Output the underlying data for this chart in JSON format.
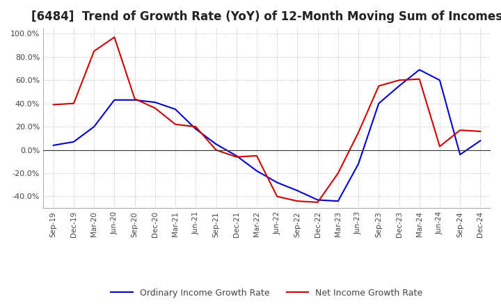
{
  "title": "[6484]  Trend of Growth Rate (YoY) of 12-Month Moving Sum of Incomes",
  "title_fontsize": 12,
  "ylim": [
    -0.5,
    1.05
  ],
  "yticks": [
    -0.4,
    -0.2,
    0.0,
    0.2,
    0.4,
    0.6,
    0.8,
    1.0
  ],
  "background_color": "#ffffff",
  "grid_color": "#aaaaaa",
  "legend_labels": [
    "Ordinary Income Growth Rate",
    "Net Income Growth Rate"
  ],
  "legend_colors": [
    "#0000cc",
    "#cc0000"
  ],
  "x_labels": [
    "Sep-19",
    "Dec-19",
    "Mar-20",
    "Jun-20",
    "Sep-20",
    "Dec-20",
    "Mar-21",
    "Jun-21",
    "Sep-21",
    "Dec-21",
    "Mar-22",
    "Jun-22",
    "Sep-22",
    "Dec-22",
    "Mar-23",
    "Jun-23",
    "Sep-23",
    "Dec-23",
    "Mar-24",
    "Jun-24",
    "Sep-24",
    "Dec-24"
  ],
  "ordinary_income": [
    0.04,
    0.07,
    0.2,
    0.43,
    0.43,
    0.41,
    0.35,
    0.18,
    0.05,
    -0.05,
    -0.18,
    -0.28,
    -0.35,
    -0.43,
    -0.44,
    -0.12,
    0.4,
    0.55,
    0.69,
    0.6,
    -0.04,
    0.08
  ],
  "net_income": [
    0.39,
    0.4,
    0.85,
    0.97,
    0.44,
    0.36,
    0.22,
    0.2,
    0.0,
    -0.06,
    -0.05,
    -0.4,
    -0.44,
    -0.45,
    -0.2,
    0.15,
    0.55,
    0.6,
    0.61,
    0.03,
    0.17,
    0.16
  ]
}
